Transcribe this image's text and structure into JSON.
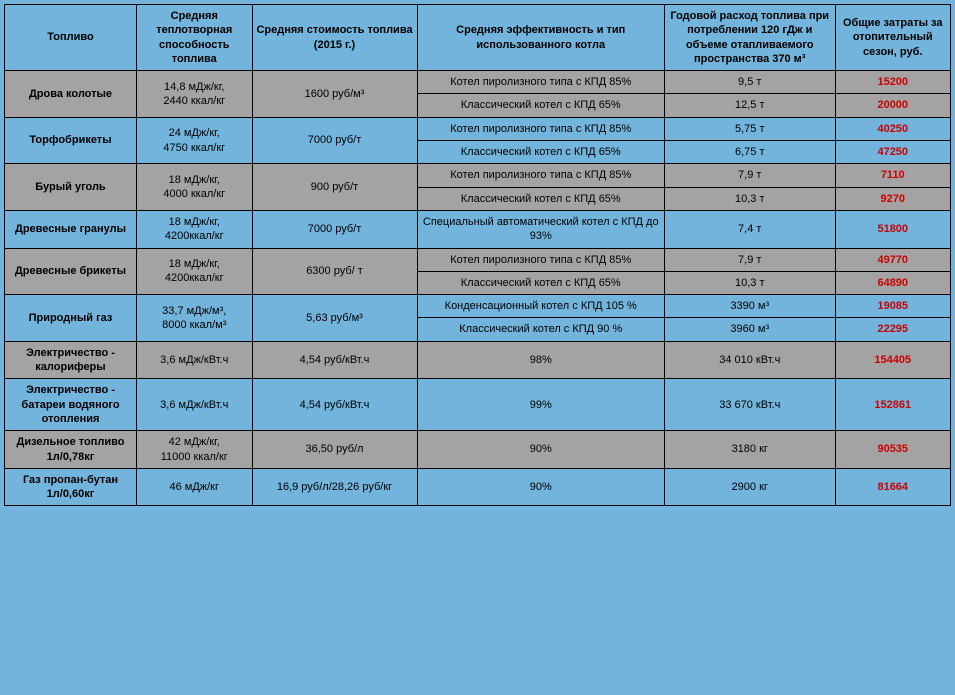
{
  "columns": [
    "Топливо",
    "Средняя теплотворная способность топлива",
    "Средняя стоимость топлива (2015 г.)",
    "Средняя эффективность и тип использованного котла",
    "Годовой расход топлива при потреблении 120 гДж и объеме отапливаемого пространства 370 м³",
    "Общие затраты за отопительный сезон, руб."
  ],
  "rows": [
    {
      "odd": true,
      "fuel": "Дрова колотые",
      "heat": "14,8 мДж/кг,\n2440 ккал/кг",
      "price": "1600 руб/м³",
      "sub": [
        {
          "boiler": "Котел пиролизного типа с КПД 85%",
          "cons": "9,5 т",
          "cost": "15200"
        },
        {
          "boiler": "Классический котел с КПД 65%",
          "cons": "12,5 т",
          "cost": "20000"
        }
      ]
    },
    {
      "odd": false,
      "fuel": "Торфобрикеты",
      "heat": "24 мДж/кг,\n4750 ккал/кг",
      "price": "7000 руб/т",
      "sub": [
        {
          "boiler": "Котел пиролизного типа с КПД 85%",
          "cons": "5,75 т",
          "cost": "40250"
        },
        {
          "boiler": "Классический котел с КПД 65%",
          "cons": "6,75 т",
          "cost": "47250"
        }
      ]
    },
    {
      "odd": true,
      "fuel": "Бурый уголь",
      "heat": "18 мДж/кг,\n4000 ккал/кг",
      "price": "900 руб/т",
      "sub": [
        {
          "boiler": "Котел пиролизного типа с КПД 85%",
          "cons": "7,9 т",
          "cost": "7110"
        },
        {
          "boiler": "Классический котел с КПД 65%",
          "cons": "10,3 т",
          "cost": "9270"
        }
      ]
    },
    {
      "odd": false,
      "fuel": "Древесные гранулы",
      "heat": "18 мДж/кг,\n4200ккал/кг",
      "price": "7000 руб/т",
      "sub": [
        {
          "boiler": "Специальный автоматический котел с КПД до 93%",
          "cons": "7,4 т",
          "cost": "51800"
        }
      ]
    },
    {
      "odd": true,
      "fuel": "Древесные брикеты",
      "heat": "18 мДж/кг,\n4200ккал/кг",
      "price": "6300  руб/ т",
      "sub": [
        {
          "boiler": "Котел пиролизного типа с КПД 85%",
          "cons": "7,9 т",
          "cost": "49770"
        },
        {
          "boiler": "Классический котел с КПД 65%",
          "cons": "10,3 т",
          "cost": "64890"
        }
      ]
    },
    {
      "odd": false,
      "fuel": "Природный газ",
      "heat": "33,7 мДж/м³,\n8000 ккал/м³",
      "price": "5,63 руб/м³",
      "sub": [
        {
          "boiler": "Конденсационный котел с КПД 105 %",
          "cons": "3390 м³",
          "cost": "19085"
        },
        {
          "boiler": "Классический котел с КПД 90 %",
          "cons": "3960 м³",
          "cost": "22295"
        }
      ]
    },
    {
      "odd": true,
      "fuel": "Электричество - калориферы",
      "heat": "3,6 мДж/кВт.ч",
      "price": "4,54  руб/кВт.ч",
      "sub": [
        {
          "boiler": "98%",
          "cons": "34 010 кВт.ч",
          "cost": "154405"
        }
      ]
    },
    {
      "odd": false,
      "fuel": "Электричество - батареи водяного отопления",
      "heat": "3,6 мДж/кВт.ч",
      "price": "4,54  руб/кВт.ч",
      "sub": [
        {
          "boiler": "99%",
          "cons": "33 670 кВт.ч",
          "cost": "152861"
        }
      ]
    },
    {
      "odd": true,
      "fuel": "Дизельное топливо 1л/0,78кг",
      "heat": "42 мДж/кг,\n11000 ккал/кг",
      "price": "36,50  руб/л",
      "sub": [
        {
          "boiler": "90%",
          "cons": "3180 кг",
          "cost": "90535"
        }
      ]
    },
    {
      "odd": false,
      "fuel": "Газ пропан-бутан 1л/0,60кг",
      "heat": "46 мДж/кг",
      "price": "16,9 руб/л/28,26 руб/кг",
      "sub": [
        {
          "boiler": "90%",
          "cons": "2900 кг",
          "cost": "81664"
        }
      ]
    }
  ],
  "colors": {
    "odd": "#a3a3a3",
    "even": "#72b4db",
    "header": "#72b4db",
    "cost": "#cc0000"
  }
}
